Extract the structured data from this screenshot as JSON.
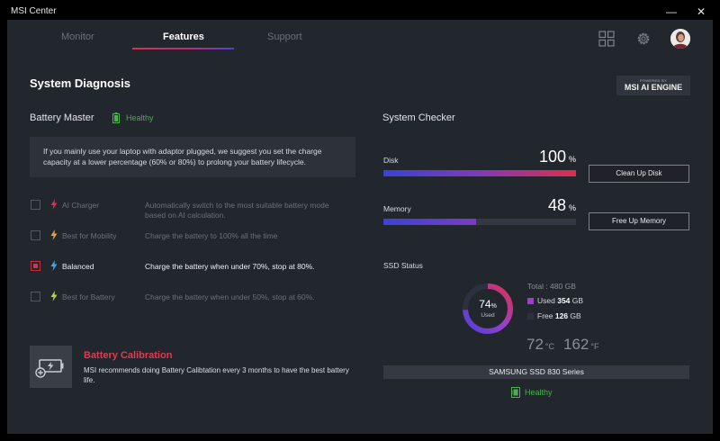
{
  "window": {
    "title": "MSI Center",
    "controls": {
      "minimize": "—",
      "close": "✕"
    }
  },
  "tabs": [
    {
      "label": "Monitor",
      "active": false
    },
    {
      "label": "Features",
      "active": true
    },
    {
      "label": "Support",
      "active": false
    }
  ],
  "header": {
    "icons": [
      "grid-icon",
      "gear-icon"
    ],
    "avatar": "user-avatar"
  },
  "page": {
    "title": "System Diagnosis"
  },
  "ai_badge": {
    "powered": "POWERED BY",
    "engine": "MSI AI ENGINE"
  },
  "battery_master": {
    "heading": "Battery Master",
    "status": "Healthy",
    "status_color": "#4caf50",
    "info": "If you mainly use your laptop with adaptor plugged, we suggest you set the charge capacity at a lower percentage (60% or 80%) to prolong your battery lifecycle.",
    "modes": [
      {
        "label": "AI Charger",
        "description": "Automatically switch to the most suitable battery mode based on AI calculation.",
        "checked": false,
        "bolt_color": "#d8324a"
      },
      {
        "label": "Best for Mobility",
        "description": "Charge the battery to 100% all the time",
        "checked": false,
        "bolt_color": "#e8a23a"
      },
      {
        "label": "Balanced",
        "description": "Charge the battery when under 70%, stop at 80%.",
        "checked": true,
        "bolt_color": "#3fa8e8"
      },
      {
        "label": "Best for Battery",
        "description": "Charge the battery when under 50%, stop at 60%.",
        "checked": false,
        "bolt_color": "#b8d63a"
      }
    ],
    "calibration": {
      "title": "Battery Calibration",
      "description": "MSI recommends doing Battery Calibtation every 3 months to have the best battery life."
    }
  },
  "system_checker": {
    "heading": "System Checker",
    "disk": {
      "label": "Disk",
      "value": "100",
      "unit": "%",
      "level": 1.0,
      "button": "Clean Up Disk"
    },
    "memory": {
      "label": "Memory",
      "value": "48",
      "unit": "%",
      "level": 0.48,
      "button": "Free Up Memory"
    },
    "ssd": {
      "heading": "SSD Status",
      "percent": "74",
      "percent_unit": "%",
      "percent_label": "Used",
      "used_fraction": 0.74,
      "total": "Total : 480 GB",
      "used_label": "Used",
      "used_value": "354",
      "used_unit": "GB",
      "free_label": "Free",
      "free_value": "126",
      "free_unit": "GB",
      "temp_c": "72",
      "temp_c_unit": "°C",
      "temp_f": "162",
      "temp_f_unit": "°F",
      "model": "SAMSUNG SSD 830 Series",
      "health": "Healthy",
      "colors": {
        "used": "#9b3fc9",
        "free": "#2c323d",
        "accent": "#d8324a"
      }
    }
  }
}
